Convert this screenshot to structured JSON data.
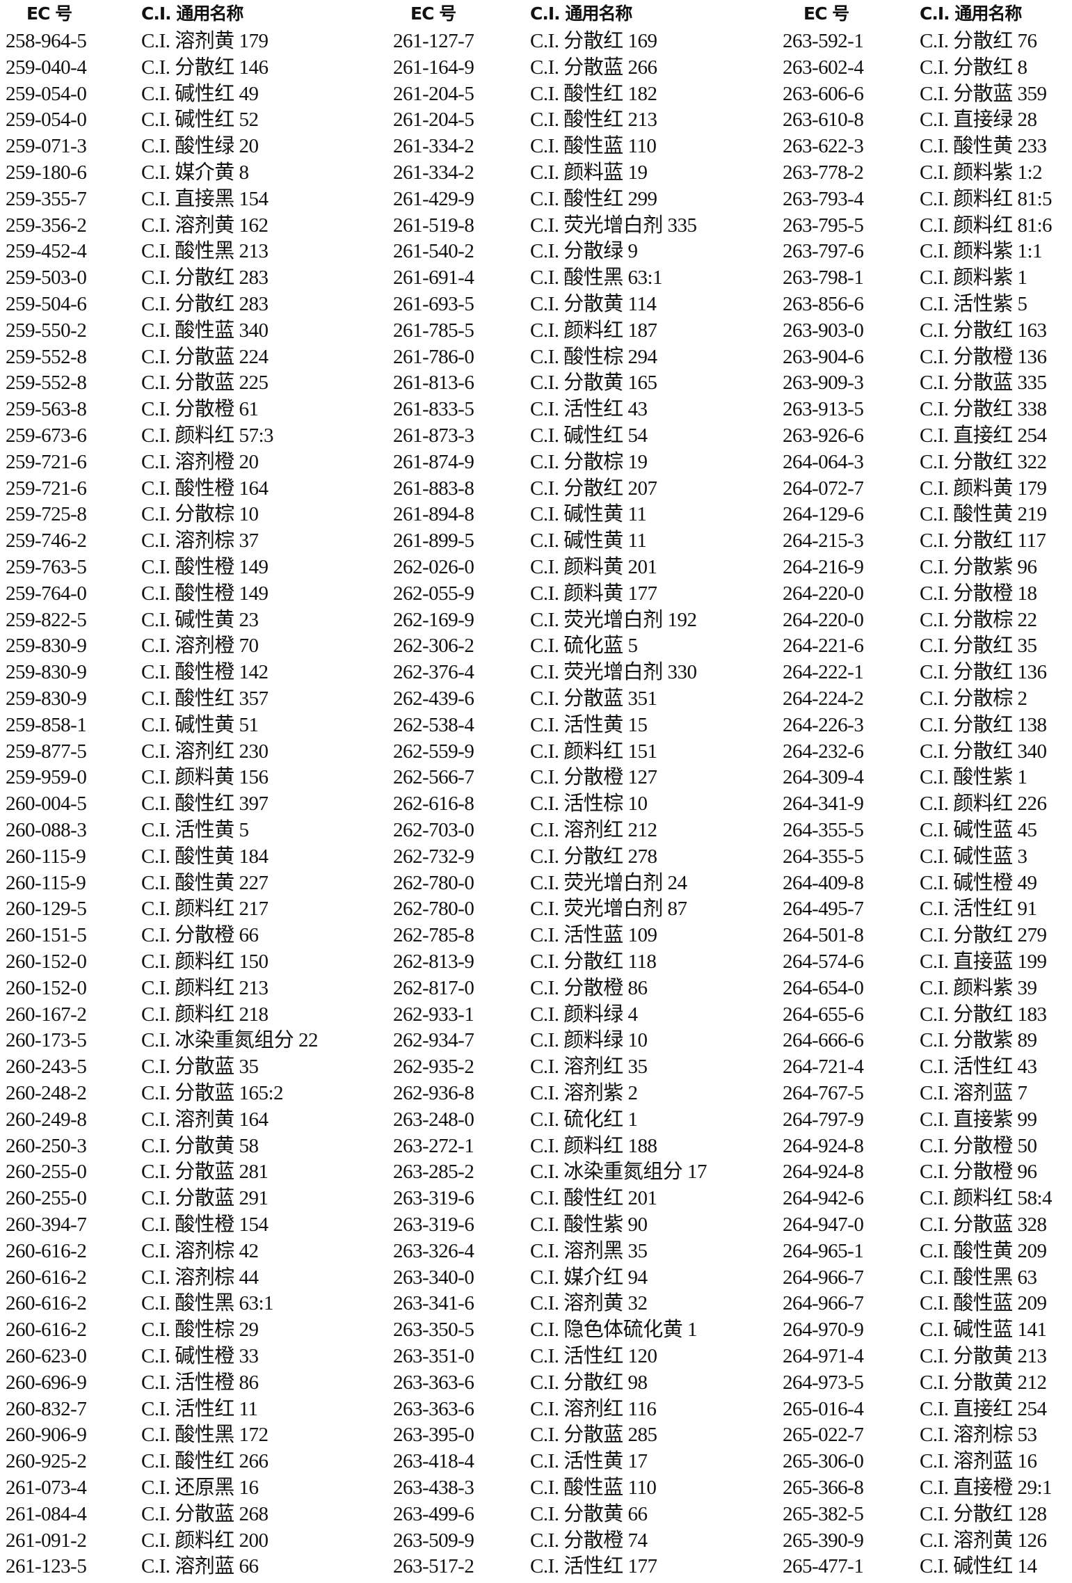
{
  "headers": {
    "ec": "EC 号",
    "name": "C.I. 通用名称"
  },
  "columns": [
    [
      [
        "258-964-5",
        "C.I. 溶剂黄 179"
      ],
      [
        "259-040-4",
        "C.I. 分散红 146"
      ],
      [
        "259-054-0",
        "C.I. 碱性红 49"
      ],
      [
        "259-054-0",
        "C.I. 碱性红 52"
      ],
      [
        "259-071-3",
        "C.I. 酸性绿 20"
      ],
      [
        "259-180-6",
        "C.I. 媒介黄 8"
      ],
      [
        "259-355-7",
        "C.I. 直接黑 154"
      ],
      [
        "259-356-2",
        "C.I. 溶剂黄 162"
      ],
      [
        "259-452-4",
        "C.I. 酸性黑 213"
      ],
      [
        "259-503-0",
        "C.I. 分散红 283"
      ],
      [
        "259-504-6",
        "C.I. 分散红 283"
      ],
      [
        "259-550-2",
        "C.I. 酸性蓝 340"
      ],
      [
        "259-552-8",
        "C.I. 分散蓝 224"
      ],
      [
        "259-552-8",
        "C.I. 分散蓝 225"
      ],
      [
        "259-563-8",
        "C.I. 分散橙 61"
      ],
      [
        "259-673-6",
        "C.I. 颜料红 57:3"
      ],
      [
        "259-721-6",
        "C.I. 溶剂橙 20"
      ],
      [
        "259-721-6",
        "C.I. 酸性橙 164"
      ],
      [
        "259-725-8",
        "C.I. 分散棕 10"
      ],
      [
        "259-746-2",
        "C.I. 溶剂棕 37"
      ],
      [
        "259-763-5",
        "C.I. 酸性橙 149"
      ],
      [
        "259-764-0",
        "C.I. 酸性橙 149"
      ],
      [
        "259-822-5",
        "C.I. 碱性黄 23"
      ],
      [
        "259-830-9",
        "C.I. 溶剂橙 70"
      ],
      [
        "259-830-9",
        "C.I. 酸性橙 142"
      ],
      [
        "259-830-9",
        "C.I. 酸性红 357"
      ],
      [
        "259-858-1",
        "C.I. 碱性黄 51"
      ],
      [
        "259-877-5",
        "C.I. 溶剂红 230"
      ],
      [
        "259-959-0",
        "C.I. 颜料黄 156"
      ],
      [
        "260-004-5",
        "C.I. 酸性红 397"
      ],
      [
        "260-088-3",
        "C.I. 活性黄 5"
      ],
      [
        "260-115-9",
        "C.I. 酸性黄 184"
      ],
      [
        "260-115-9",
        "C.I. 酸性黄 227"
      ],
      [
        "260-129-5",
        "C.I. 颜料红 217"
      ],
      [
        "260-151-5",
        "C.I. 分散橙 66"
      ],
      [
        "260-152-0",
        "C.I. 颜料红 150"
      ],
      [
        "260-152-0",
        "C.I. 颜料红 213"
      ],
      [
        "260-167-2",
        "C.I. 颜料红 218"
      ],
      [
        "260-173-5",
        "C.I. 冰染重氮组分 22"
      ],
      [
        "260-243-5",
        "C.I. 分散蓝 35"
      ],
      [
        "260-248-2",
        "C.I. 分散蓝 165:2"
      ],
      [
        "260-249-8",
        "C.I. 溶剂黄 164"
      ],
      [
        "260-250-3",
        "C.I. 分散黄 58"
      ],
      [
        "260-255-0",
        "C.I. 分散蓝 281"
      ],
      [
        "260-255-0",
        "C.I. 分散蓝 291"
      ],
      [
        "260-394-7",
        "C.I. 酸性橙 154"
      ],
      [
        "260-616-2",
        "C.I. 溶剂棕 42"
      ],
      [
        "260-616-2",
        "C.I. 溶剂棕 44"
      ],
      [
        "260-616-2",
        "C.I. 酸性黑 63:1"
      ],
      [
        "260-616-2",
        "C.I. 酸性棕 29"
      ],
      [
        "260-623-0",
        "C.I. 碱性橙 33"
      ],
      [
        "260-696-9",
        "C.I. 活性橙 86"
      ],
      [
        "260-832-7",
        "C.I. 活性红 11"
      ],
      [
        "260-906-9",
        "C.I. 酸性黑 172"
      ],
      [
        "260-925-2",
        "C.I. 酸性红 266"
      ],
      [
        "261-073-4",
        "C.I. 还原黑 16"
      ],
      [
        "261-084-4",
        "C.I. 分散蓝 268"
      ],
      [
        "261-091-2",
        "C.I. 颜料红 200"
      ],
      [
        "261-123-5",
        "C.I. 溶剂蓝 66"
      ]
    ],
    [
      [
        "261-127-7",
        "C.I. 分散红 169"
      ],
      [
        "261-164-9",
        "C.I. 分散蓝 266"
      ],
      [
        "261-204-5",
        "C.I. 酸性红 182"
      ],
      [
        "261-204-5",
        "C.I. 酸性红 213"
      ],
      [
        "261-334-2",
        "C.I. 酸性蓝 110"
      ],
      [
        "261-334-2",
        "C.I. 颜料蓝 19"
      ],
      [
        "261-429-9",
        "C.I. 酸性红 299"
      ],
      [
        "261-519-8",
        "C.I. 荧光增白剂 335"
      ],
      [
        "261-540-2",
        "C.I. 分散绿 9"
      ],
      [
        "261-691-4",
        "C.I. 酸性黑 63:1"
      ],
      [
        "261-693-5",
        "C.I. 分散黄 114"
      ],
      [
        "261-785-5",
        "C.I. 颜料红 187"
      ],
      [
        "261-786-0",
        "C.I. 酸性棕 294"
      ],
      [
        "261-813-6",
        "C.I. 分散黄 165"
      ],
      [
        "261-833-5",
        "C.I. 活性红 43"
      ],
      [
        "261-873-3",
        "C.I. 碱性红 54"
      ],
      [
        "261-874-9",
        "C.I. 分散棕 19"
      ],
      [
        "261-883-8",
        "C.I. 分散红 207"
      ],
      [
        "261-894-8",
        "C.I. 碱性黄 11"
      ],
      [
        "261-899-5",
        "C.I. 碱性黄 11"
      ],
      [
        "262-026-0",
        "C.I. 颜料黄 201"
      ],
      [
        "262-055-9",
        "C.I. 颜料黄 177"
      ],
      [
        "262-169-9",
        "C.I. 荧光增白剂 192"
      ],
      [
        "262-306-2",
        "C.I. 硫化蓝 5"
      ],
      [
        "262-376-4",
        "C.I. 荧光增白剂 330"
      ],
      [
        "262-439-6",
        "C.I. 分散蓝 351"
      ],
      [
        "262-538-4",
        "C.I. 活性黄 15"
      ],
      [
        "262-559-9",
        "C.I. 颜料红 151"
      ],
      [
        "262-566-7",
        "C.I. 分散橙 127"
      ],
      [
        "262-616-8",
        "C.I. 活性棕 10"
      ],
      [
        "262-703-0",
        "C.I. 溶剂红 212"
      ],
      [
        "262-732-9",
        "C.I. 分散红 278"
      ],
      [
        "262-780-0",
        "C.I. 荧光增白剂 24"
      ],
      [
        "262-780-0",
        "C.I. 荧光增白剂 87"
      ],
      [
        "262-785-8",
        "C.I. 活性蓝 109"
      ],
      [
        "262-813-9",
        "C.I. 分散红 118"
      ],
      [
        "262-817-0",
        "C.I. 分散橙 86"
      ],
      [
        "262-933-1",
        "C.I. 颜料绿 4"
      ],
      [
        "262-934-7",
        "C.I. 颜料绿 10"
      ],
      [
        "262-935-2",
        "C.I. 溶剂红 35"
      ],
      [
        "262-936-8",
        "C.I. 溶剂紫 2"
      ],
      [
        "263-248-0",
        "C.I. 硫化红 1"
      ],
      [
        "263-272-1",
        "C.I. 颜料红 188"
      ],
      [
        "263-285-2",
        "C.I. 冰染重氮组分 17"
      ],
      [
        "263-319-6",
        "C.I. 酸性红 201"
      ],
      [
        "263-319-6",
        "C.I. 酸性紫 90"
      ],
      [
        "263-326-4",
        "C.I. 溶剂黑 35"
      ],
      [
        "263-340-0",
        "C.I. 媒介红 94"
      ],
      [
        "263-341-6",
        "C.I. 溶剂黄 32"
      ],
      [
        "263-350-5",
        "C.I. 隐色体硫化黄 1"
      ],
      [
        "263-351-0",
        "C.I. 活性红 120"
      ],
      [
        "263-363-6",
        "C.I. 分散红 98"
      ],
      [
        "263-363-6",
        "C.I. 溶剂红 116"
      ],
      [
        "263-395-0",
        "C.I. 分散蓝 285"
      ],
      [
        "263-418-4",
        "C.I. 活性黄 17"
      ],
      [
        "263-438-3",
        "C.I. 酸性蓝 110"
      ],
      [
        "263-499-6",
        "C.I. 分散黄 66"
      ],
      [
        "263-509-9",
        "C.I. 分散橙 74"
      ],
      [
        "263-517-2",
        "C.I. 活性红 177"
      ]
    ],
    [
      [
        "263-592-1",
        "C.I. 分散红 76"
      ],
      [
        "263-602-4",
        "C.I. 分散红 8"
      ],
      [
        "263-606-6",
        "C.I. 分散蓝 359"
      ],
      [
        "263-610-8",
        "C.I. 直接绿 28"
      ],
      [
        "263-622-3",
        "C.I. 酸性黄 233"
      ],
      [
        "263-778-2",
        "C.I. 颜料紫 1:2"
      ],
      [
        "263-793-4",
        "C.I. 颜料红 81:5"
      ],
      [
        "263-795-5",
        "C.I. 颜料红 81:6"
      ],
      [
        "263-797-6",
        "C.I. 颜料紫 1:1"
      ],
      [
        "263-798-1",
        "C.I. 颜料紫 1"
      ],
      [
        "263-856-6",
        "C.I. 活性紫 5"
      ],
      [
        "263-903-0",
        "C.I. 分散红 163"
      ],
      [
        "263-904-6",
        "C.I. 分散橙 136"
      ],
      [
        "263-909-3",
        "C.I. 分散蓝 335"
      ],
      [
        "263-913-5",
        "C.I. 分散红 338"
      ],
      [
        "263-926-6",
        "C.I. 直接红 254"
      ],
      [
        "264-064-3",
        "C.I. 分散红 322"
      ],
      [
        "264-072-7",
        "C.I. 颜料黄 179"
      ],
      [
        "264-129-6",
        "C.I. 酸性黄 219"
      ],
      [
        "264-215-3",
        "C.I. 分散红 117"
      ],
      [
        "264-216-9",
        "C.I. 分散紫 96"
      ],
      [
        "264-220-0",
        "C.I. 分散橙 18"
      ],
      [
        "264-220-0",
        "C.I. 分散棕 22"
      ],
      [
        "264-221-6",
        "C.I. 分散红 35"
      ],
      [
        "264-222-1",
        "C.I. 分散红 136"
      ],
      [
        "264-224-2",
        "C.I. 分散棕 2"
      ],
      [
        "264-226-3",
        "C.I. 分散红 138"
      ],
      [
        "264-232-6",
        "C.I. 分散红 340"
      ],
      [
        "264-309-4",
        "C.I. 酸性紫 1"
      ],
      [
        "264-341-9",
        "C.I. 颜料红 226"
      ],
      [
        "264-355-5",
        "C.I. 碱性蓝 45"
      ],
      [
        "264-355-5",
        "C.I. 碱性蓝 3"
      ],
      [
        "264-409-8",
        "C.I. 碱性橙 49"
      ],
      [
        "264-495-7",
        "C.I. 活性红 91"
      ],
      [
        "264-501-8",
        "C.I. 分散红 279"
      ],
      [
        "264-574-6",
        "C.I. 直接蓝 199"
      ],
      [
        "264-654-0",
        "C.I. 颜料紫 39"
      ],
      [
        "264-655-6",
        "C.I. 分散红 183"
      ],
      [
        "264-666-6",
        "C.I. 分散紫 89"
      ],
      [
        "264-721-4",
        "C.I. 活性红 43"
      ],
      [
        "264-767-5",
        "C.I. 溶剂蓝 7"
      ],
      [
        "264-797-9",
        "C.I. 直接紫 99"
      ],
      [
        "264-924-8",
        "C.I. 分散橙 50"
      ],
      [
        "264-924-8",
        "C.I. 分散橙 96"
      ],
      [
        "264-942-6",
        "C.I. 颜料红 58:4"
      ],
      [
        "264-947-0",
        "C.I. 分散蓝 328"
      ],
      [
        "264-965-1",
        "C.I. 酸性黄 209"
      ],
      [
        "264-966-7",
        "C.I. 酸性黑 63"
      ],
      [
        "264-966-7",
        "C.I. 酸性蓝 209"
      ],
      [
        "264-970-9",
        "C.I. 碱性蓝 141"
      ],
      [
        "264-971-4",
        "C.I. 分散黄 213"
      ],
      [
        "264-973-5",
        "C.I. 分散黄 212"
      ],
      [
        "265-016-4",
        "C.I. 直接红 254"
      ],
      [
        "265-022-7",
        "C.I. 溶剂棕 53"
      ],
      [
        "265-306-0",
        "C.I. 溶剂蓝 16"
      ],
      [
        "265-366-8",
        "C.I. 直接橙 29:1"
      ],
      [
        "265-382-5",
        "C.I. 分散红 128"
      ],
      [
        "265-390-9",
        "C.I. 溶剂黄 126"
      ],
      [
        "265-477-1",
        "C.I. 碱性红 14"
      ]
    ]
  ]
}
